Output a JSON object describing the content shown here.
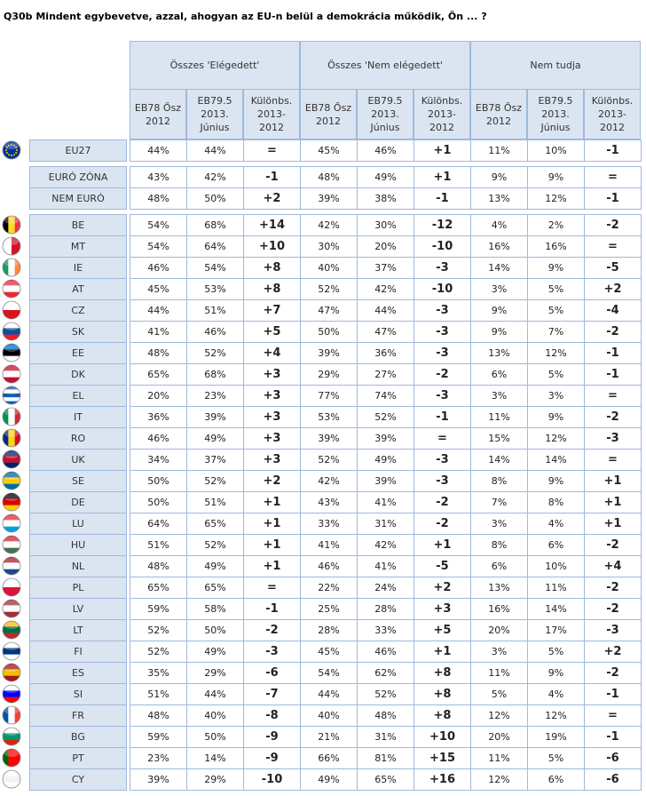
{
  "title": "Q30b Mindent egybevetve, azzal, ahogyan az EU-n belül a demokrácia működik, Ön ... ?",
  "header": {
    "groups": [
      "Összes 'Elégedett'",
      "Összes 'Nem elégedett'",
      "Nem tudja"
    ],
    "subheaders": [
      "EB78 Ősz\n2012",
      "EB79.5\n2013.\nJúnius",
      "Különbs.\n2013-\n2012"
    ]
  },
  "sections": [
    {
      "rows": [
        {
          "label": "EU27",
          "cells": [
            "44%",
            "44%",
            "=",
            "45%",
            "46%",
            "+1",
            "11%",
            "10%",
            "-1"
          ]
        }
      ]
    },
    {
      "rows": [
        {
          "label": "EURÓ ZÓNA",
          "cells": [
            "43%",
            "42%",
            "-1",
            "48%",
            "49%",
            "+1",
            "9%",
            "9%",
            "="
          ]
        },
        {
          "label": "NEM EURÓ",
          "cells": [
            "48%",
            "50%",
            "+2",
            "39%",
            "38%",
            "-1",
            "13%",
            "12%",
            "-1"
          ]
        }
      ]
    },
    {
      "rows": [
        {
          "label": "BE",
          "cells": [
            "54%",
            "68%",
            "+14",
            "42%",
            "30%",
            "-12",
            "4%",
            "2%",
            "-2"
          ]
        },
        {
          "label": "MT",
          "cells": [
            "54%",
            "64%",
            "+10",
            "30%",
            "20%",
            "-10",
            "16%",
            "16%",
            "="
          ]
        },
        {
          "label": "IE",
          "cells": [
            "46%",
            "54%",
            "+8",
            "40%",
            "37%",
            "-3",
            "14%",
            "9%",
            "-5"
          ]
        },
        {
          "label": "AT",
          "cells": [
            "45%",
            "53%",
            "+8",
            "52%",
            "42%",
            "-10",
            "3%",
            "5%",
            "+2"
          ]
        },
        {
          "label": "CZ",
          "cells": [
            "44%",
            "51%",
            "+7",
            "47%",
            "44%",
            "-3",
            "9%",
            "5%",
            "-4"
          ]
        },
        {
          "label": "SK",
          "cells": [
            "41%",
            "46%",
            "+5",
            "50%",
            "47%",
            "-3",
            "9%",
            "7%",
            "-2"
          ]
        },
        {
          "label": "EE",
          "cells": [
            "48%",
            "52%",
            "+4",
            "39%",
            "36%",
            "-3",
            "13%",
            "12%",
            "-1"
          ]
        },
        {
          "label": "DK",
          "cells": [
            "65%",
            "68%",
            "+3",
            "29%",
            "27%",
            "-2",
            "6%",
            "5%",
            "-1"
          ]
        },
        {
          "label": "EL",
          "cells": [
            "20%",
            "23%",
            "+3",
            "77%",
            "74%",
            "-3",
            "3%",
            "3%",
            "="
          ]
        },
        {
          "label": "IT",
          "cells": [
            "36%",
            "39%",
            "+3",
            "53%",
            "52%",
            "-1",
            "11%",
            "9%",
            "-2"
          ]
        },
        {
          "label": "RO",
          "cells": [
            "46%",
            "49%",
            "+3",
            "39%",
            "39%",
            "=",
            "15%",
            "12%",
            "-3"
          ]
        },
        {
          "label": "UK",
          "cells": [
            "34%",
            "37%",
            "+3",
            "52%",
            "49%",
            "-3",
            "14%",
            "14%",
            "="
          ]
        },
        {
          "label": "SE",
          "cells": [
            "50%",
            "52%",
            "+2",
            "42%",
            "39%",
            "-3",
            "8%",
            "9%",
            "+1"
          ]
        },
        {
          "label": "DE",
          "cells": [
            "50%",
            "51%",
            "+1",
            "43%",
            "41%",
            "-2",
            "7%",
            "8%",
            "+1"
          ]
        },
        {
          "label": "LU",
          "cells": [
            "64%",
            "65%",
            "+1",
            "33%",
            "31%",
            "-2",
            "3%",
            "4%",
            "+1"
          ]
        },
        {
          "label": "HU",
          "cells": [
            "51%",
            "52%",
            "+1",
            "41%",
            "42%",
            "+1",
            "8%",
            "6%",
            "-2"
          ]
        },
        {
          "label": "NL",
          "cells": [
            "48%",
            "49%",
            "+1",
            "46%",
            "41%",
            "-5",
            "6%",
            "10%",
            "+4"
          ]
        },
        {
          "label": "PL",
          "cells": [
            "65%",
            "65%",
            "=",
            "22%",
            "24%",
            "+2",
            "13%",
            "11%",
            "-2"
          ]
        },
        {
          "label": "LV",
          "cells": [
            "59%",
            "58%",
            "-1",
            "25%",
            "28%",
            "+3",
            "16%",
            "14%",
            "-2"
          ]
        },
        {
          "label": "LT",
          "cells": [
            "52%",
            "50%",
            "-2",
            "28%",
            "33%",
            "+5",
            "20%",
            "17%",
            "-3"
          ]
        },
        {
          "label": "FI",
          "cells": [
            "52%",
            "49%",
            "-3",
            "45%",
            "46%",
            "+1",
            "3%",
            "5%",
            "+2"
          ]
        },
        {
          "label": "ES",
          "cells": [
            "35%",
            "29%",
            "-6",
            "54%",
            "62%",
            "+8",
            "11%",
            "9%",
            "-2"
          ]
        },
        {
          "label": "SI",
          "cells": [
            "51%",
            "44%",
            "-7",
            "44%",
            "52%",
            "+8",
            "5%",
            "4%",
            "-1"
          ]
        },
        {
          "label": "FR",
          "cells": [
            "48%",
            "40%",
            "-8",
            "40%",
            "48%",
            "+8",
            "12%",
            "12%",
            "="
          ]
        },
        {
          "label": "BG",
          "cells": [
            "59%",
            "50%",
            "-9",
            "21%",
            "31%",
            "+10",
            "20%",
            "19%",
            "-1"
          ]
        },
        {
          "label": "PT",
          "cells": [
            "23%",
            "14%",
            "-9",
            "66%",
            "81%",
            "+15",
            "11%",
            "5%",
            "-6"
          ]
        },
        {
          "label": "CY",
          "cells": [
            "39%",
            "29%",
            "-10",
            "49%",
            "65%",
            "+16",
            "12%",
            "6%",
            "-6"
          ]
        }
      ]
    }
  ]
}
